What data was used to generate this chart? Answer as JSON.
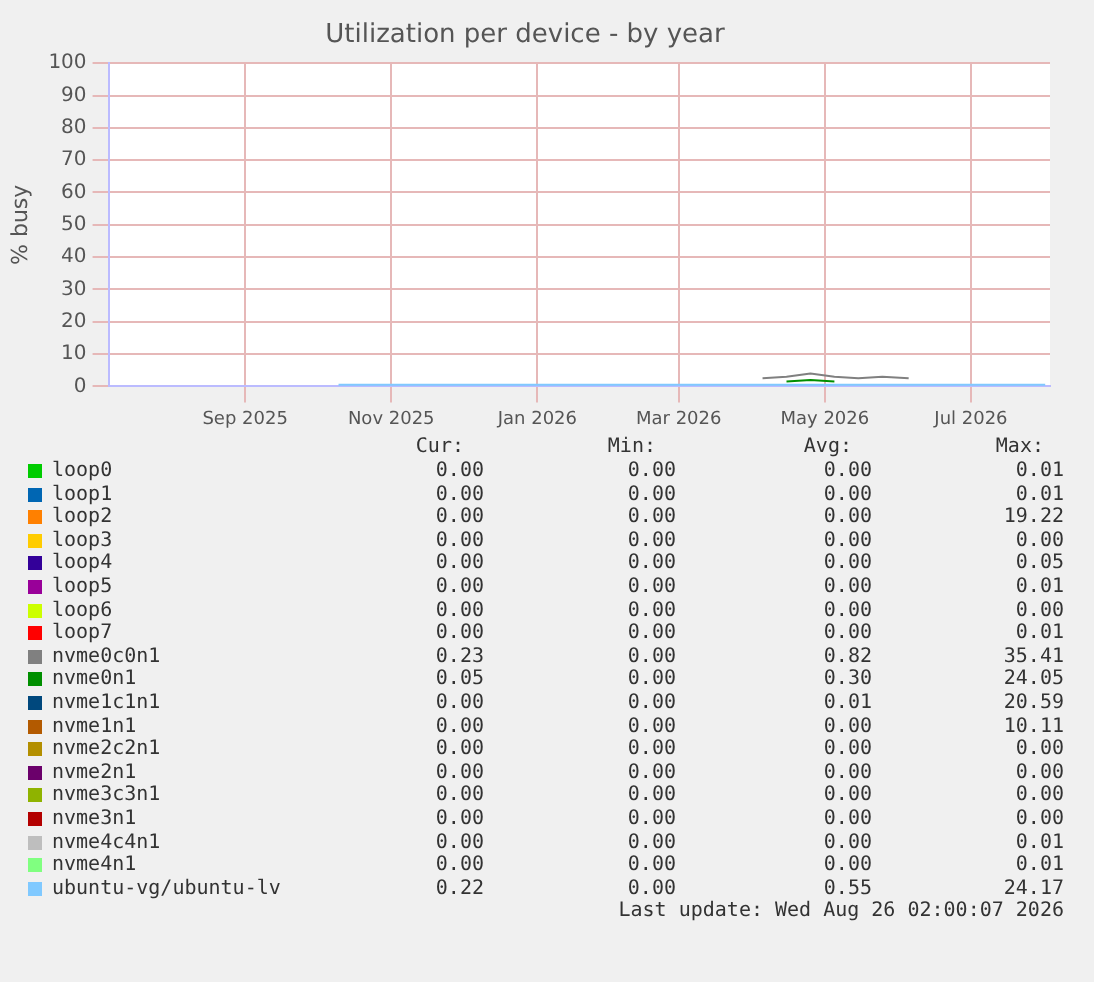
{
  "chart_data": {
    "type": "line",
    "title": "Utilization per device - by year",
    "ylabel": "% busy",
    "x": [
      "2025-10-10",
      "2025-10-25",
      "2025-11-10",
      "2025-11-25",
      "2025-12-10",
      "2025-12-25",
      "2026-01-10",
      "2026-01-25",
      "2026-02-10",
      "2026-02-25",
      "2026-03-10",
      "2026-03-25",
      "2026-04-05",
      "2026-04-15",
      "2026-04-25",
      "2026-05-05",
      "2026-05-15",
      "2026-05-25",
      "2026-06-05",
      "2026-06-15",
      "2026-06-25",
      "2026-07-05",
      "2026-07-15",
      "2026-07-25",
      "2026-08-01"
    ],
    "xlim": [
      "2025-07-06",
      "2026-08-03"
    ],
    "xticks": [
      {
        "value": "2025-09-01",
        "label": "Sep 2025"
      },
      {
        "value": "2025-11-01",
        "label": "Nov 2025"
      },
      {
        "value": "2026-01-01",
        "label": "Jan 2026"
      },
      {
        "value": "2026-03-01",
        "label": "Mar 2026"
      },
      {
        "value": "2026-05-01",
        "label": "May 2026"
      },
      {
        "value": "2026-07-01",
        "label": "Jul 2026"
      }
    ],
    "ylim": [
      0,
      100
    ],
    "yticks": [
      0,
      10,
      20,
      30,
      40,
      50,
      60,
      70,
      80,
      90,
      100
    ],
    "grid": true,
    "legend": "bottom",
    "series": [
      {
        "name": "loop0",
        "color": "#00cc00",
        "values": [
          null,
          null,
          null,
          null,
          null,
          null,
          null,
          null,
          null,
          null,
          null,
          null,
          null,
          null,
          null,
          null,
          null,
          null,
          null,
          null,
          null,
          null,
          null,
          null,
          null
        ]
      },
      {
        "name": "loop1",
        "color": "#0066b3",
        "values": [
          null,
          null,
          null,
          null,
          null,
          null,
          null,
          null,
          null,
          null,
          null,
          null,
          null,
          null,
          null,
          null,
          null,
          null,
          null,
          null,
          null,
          null,
          null,
          null,
          null
        ]
      },
      {
        "name": "loop2",
        "color": "#ff8000",
        "values": [
          null,
          null,
          null,
          null,
          null,
          null,
          null,
          null,
          null,
          null,
          null,
          null,
          null,
          null,
          null,
          null,
          null,
          null,
          null,
          null,
          null,
          null,
          null,
          null,
          null
        ]
      },
      {
        "name": "loop3",
        "color": "#ffcc00",
        "values": [
          null,
          null,
          null,
          null,
          null,
          null,
          null,
          null,
          null,
          null,
          null,
          null,
          null,
          null,
          null,
          null,
          null,
          null,
          null,
          null,
          null,
          null,
          null,
          null,
          null
        ]
      },
      {
        "name": "loop4",
        "color": "#330099",
        "values": [
          null,
          null,
          null,
          null,
          null,
          null,
          null,
          null,
          null,
          null,
          null,
          null,
          null,
          null,
          null,
          null,
          null,
          null,
          null,
          null,
          null,
          null,
          null,
          null,
          null
        ]
      },
      {
        "name": "loop5",
        "color": "#990099",
        "values": [
          null,
          null,
          null,
          null,
          null,
          null,
          null,
          null,
          null,
          null,
          null,
          null,
          null,
          null,
          null,
          null,
          null,
          null,
          null,
          null,
          null,
          null,
          null,
          null,
          null
        ]
      },
      {
        "name": "loop6",
        "color": "#ccff00",
        "values": [
          null,
          null,
          null,
          null,
          null,
          null,
          null,
          null,
          null,
          null,
          null,
          null,
          null,
          null,
          null,
          null,
          null,
          null,
          null,
          null,
          null,
          null,
          null,
          null,
          null
        ]
      },
      {
        "name": "loop7",
        "color": "#ff0000",
        "values": [
          null,
          null,
          null,
          null,
          null,
          null,
          null,
          null,
          null,
          null,
          null,
          null,
          null,
          null,
          null,
          null,
          null,
          null,
          null,
          null,
          null,
          null,
          null,
          null,
          null
        ]
      },
      {
        "name": "nvme0c0n1",
        "color": "#808080",
        "values": [
          null,
          null,
          null,
          null,
          null,
          null,
          null,
          null,
          null,
          null,
          null,
          null,
          2.5,
          3,
          4,
          3,
          2.5,
          3,
          2.5,
          null,
          null,
          null,
          null,
          null,
          null
        ]
      },
      {
        "name": "nvme0n1",
        "color": "#008f00",
        "values": [
          null,
          null,
          null,
          null,
          null,
          null,
          null,
          null,
          null,
          null,
          null,
          null,
          null,
          1.5,
          2,
          1.5,
          null,
          null,
          null,
          null,
          null,
          null,
          null,
          null,
          null
        ]
      },
      {
        "name": "nvme1c1n1",
        "color": "#00487d",
        "values": [
          null,
          null,
          null,
          null,
          null,
          null,
          null,
          null,
          null,
          null,
          null,
          null,
          null,
          null,
          null,
          null,
          null,
          null,
          null,
          null,
          null,
          null,
          null,
          null,
          null
        ]
      },
      {
        "name": "nvme1n1",
        "color": "#b35a00",
        "values": [
          null,
          null,
          null,
          null,
          null,
          null,
          null,
          null,
          null,
          null,
          null,
          null,
          null,
          null,
          null,
          null,
          null,
          null,
          null,
          null,
          null,
          null,
          null,
          null,
          null
        ]
      },
      {
        "name": "nvme2c2n1",
        "color": "#b38f00",
        "values": [
          null,
          null,
          null,
          null,
          null,
          null,
          null,
          null,
          null,
          null,
          null,
          null,
          null,
          null,
          null,
          null,
          null,
          null,
          null,
          null,
          null,
          null,
          null,
          null,
          null
        ]
      },
      {
        "name": "nvme2n1",
        "color": "#6b006b",
        "values": [
          null,
          null,
          null,
          null,
          null,
          null,
          null,
          null,
          null,
          null,
          null,
          null,
          null,
          null,
          null,
          null,
          null,
          null,
          null,
          null,
          null,
          null,
          null,
          null,
          null
        ]
      },
      {
        "name": "nvme3c3n1",
        "color": "#8fb300",
        "values": [
          null,
          null,
          null,
          null,
          null,
          null,
          null,
          null,
          null,
          null,
          null,
          null,
          null,
          null,
          null,
          null,
          null,
          null,
          null,
          null,
          null,
          null,
          null,
          null,
          null
        ]
      },
      {
        "name": "nvme3n1",
        "color": "#b30000",
        "values": [
          null,
          null,
          null,
          null,
          null,
          null,
          null,
          null,
          null,
          null,
          null,
          null,
          null,
          null,
          null,
          null,
          null,
          null,
          null,
          null,
          null,
          null,
          null,
          null,
          null
        ]
      },
      {
        "name": "nvme4c4n1",
        "color": "#bebebe",
        "values": [
          null,
          null,
          null,
          null,
          null,
          null,
          null,
          null,
          null,
          null,
          null,
          null,
          null,
          null,
          null,
          null,
          null,
          null,
          null,
          null,
          null,
          null,
          null,
          null,
          null
        ]
      },
      {
        "name": "nvme4n1",
        "color": "#80ff80",
        "values": [
          null,
          null,
          null,
          null,
          null,
          null,
          null,
          null,
          null,
          null,
          null,
          null,
          null,
          null,
          null,
          null,
          null,
          null,
          null,
          null,
          null,
          null,
          null,
          null,
          null
        ]
      },
      {
        "name": "ubuntu-vg/ubuntu-lv",
        "color": "#80c9ff",
        "values": [
          0.5,
          0.5,
          0.5,
          0.5,
          0.5,
          0.5,
          0.5,
          0.5,
          0.5,
          0.5,
          0.5,
          0.5,
          0.5,
          0.5,
          0.5,
          0.5,
          0.5,
          0.5,
          0.5,
          0.5,
          0.5,
          0.5,
          0.5,
          0.5,
          0.5
        ]
      }
    ],
    "annotations": [
      "Cur:",
      "Min:",
      "Avg:",
      "Max:",
      "0.00",
      "0.00",
      "0.00",
      "0.01",
      "0.00",
      "0.00",
      "0.00",
      "0.01",
      "0.00",
      "0.00",
      "0.00",
      "19.22",
      "0.00",
      "0.00",
      "0.00",
      "0.00",
      "0.00",
      "0.00",
      "0.00",
      "0.05",
      "0.00",
      "0.00",
      "0.00",
      "0.01",
      "0.00",
      "0.00",
      "0.00",
      "0.00",
      "0.00",
      "0.00",
      "0.00",
      "0.01",
      "0.23",
      "0.00",
      "0.82",
      "35.41",
      "0.05",
      "0.00",
      "0.30",
      "24.05",
      "0.00",
      "0.00",
      "0.01",
      "20.59",
      "0.00",
      "0.00",
      "0.00",
      "10.11",
      "0.00",
      "0.00",
      "0.00",
      "0.00",
      "0.00",
      "0.00",
      "0.00",
      "0.00",
      "0.00",
      "0.00",
      "0.00",
      "0.00",
      "0.00",
      "0.00",
      "0.00",
      "0.00",
      "0.00",
      "0.00",
      "0.00",
      "0.01",
      "0.00",
      "0.00",
      "0.00",
      "0.01",
      "0.22",
      "0.00",
      "0.55",
      "24.17",
      "Last update: Wed Aug 26 02:00:07 2026"
    ]
  }
}
